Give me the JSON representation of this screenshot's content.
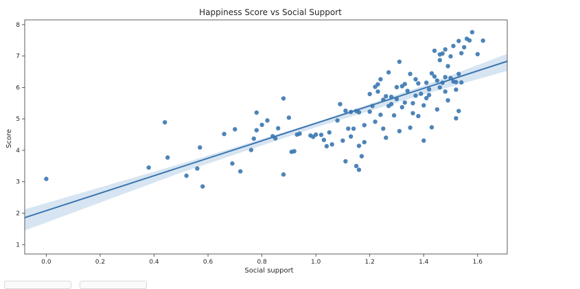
{
  "chart_data": {
    "type": "scatter",
    "title": "Happiness Score vs Social Support",
    "xlabel": "Social support",
    "ylabel": "Score",
    "xlim": [
      -0.08,
      1.71
    ],
    "ylim": [
      0.7,
      8.15
    ],
    "x_ticks": [
      "0.0",
      "0.2",
      "0.4",
      "0.6",
      "0.8",
      "1.0",
      "1.2",
      "1.4",
      "1.6"
    ],
    "x_tick_values": [
      0.0,
      0.2,
      0.4,
      0.6,
      0.8,
      1.0,
      1.2,
      1.4,
      1.6
    ],
    "y_ticks": [
      "1",
      "2",
      "3",
      "4",
      "5",
      "6",
      "7",
      "8"
    ],
    "y_tick_values": [
      1,
      2,
      3,
      4,
      5,
      6,
      7,
      8
    ],
    "grid": false,
    "point_color": "#3a77b0",
    "regression": {
      "x_range": [
        -0.08,
        1.71
      ],
      "intercept": 2.08,
      "slope": 2.78,
      "line_color": "#3b75af",
      "ci_color": "#c9dcee",
      "ci": [
        {
          "x": -0.08,
          "lo": 1.45,
          "hi": 2.12
        },
        {
          "x": 0.5,
          "lo": 3.29,
          "hi": 3.57
        },
        {
          "x": 1.0,
          "lo": 4.73,
          "hi": 4.89
        },
        {
          "x": 1.4,
          "lo": 5.78,
          "hi": 6.06
        },
        {
          "x": 1.71,
          "lo": 6.53,
          "hi": 7.07
        }
      ]
    },
    "points": [
      [
        0.0,
        3.09
      ],
      [
        0.38,
        3.45
      ],
      [
        0.44,
        4.89
      ],
      [
        0.45,
        3.77
      ],
      [
        0.52,
        3.19
      ],
      [
        0.56,
        3.42
      ],
      [
        0.57,
        4.09
      ],
      [
        0.58,
        2.85
      ],
      [
        0.66,
        4.52
      ],
      [
        0.69,
        3.58
      ],
      [
        0.7,
        4.67
      ],
      [
        0.72,
        3.33
      ],
      [
        0.76,
        4.01
      ],
      [
        0.77,
        4.37
      ],
      [
        0.78,
        4.64
      ],
      [
        0.78,
        5.2
      ],
      [
        0.8,
        4.81
      ],
      [
        0.82,
        4.95
      ],
      [
        0.84,
        4.45
      ],
      [
        0.85,
        4.38
      ],
      [
        0.86,
        4.7
      ],
      [
        0.88,
        5.65
      ],
      [
        0.88,
        3.23
      ],
      [
        0.9,
        5.04
      ],
      [
        0.91,
        3.95
      ],
      [
        0.92,
        3.97
      ],
      [
        0.93,
        4.5
      ],
      [
        0.94,
        4.53
      ],
      [
        0.98,
        4.47
      ],
      [
        0.99,
        4.43
      ],
      [
        1.0,
        4.5
      ],
      [
        1.02,
        4.49
      ],
      [
        1.03,
        4.33
      ],
      [
        1.04,
        4.13
      ],
      [
        1.05,
        4.57
      ],
      [
        1.06,
        4.19
      ],
      [
        1.08,
        4.95
      ],
      [
        1.09,
        5.47
      ],
      [
        1.1,
        4.31
      ],
      [
        1.11,
        5.26
      ],
      [
        1.11,
        3.65
      ],
      [
        1.12,
        4.69
      ],
      [
        1.13,
        5.22
      ],
      [
        1.13,
        4.44
      ],
      [
        1.14,
        4.69
      ],
      [
        1.15,
        3.5
      ],
      [
        1.15,
        5.25
      ],
      [
        1.16,
        5.21
      ],
      [
        1.16,
        4.14
      ],
      [
        1.16,
        3.38
      ],
      [
        1.17,
        3.81
      ],
      [
        1.18,
        4.26
      ],
      [
        1.18,
        4.8
      ],
      [
        1.2,
        5.23
      ],
      [
        1.2,
        5.79
      ],
      [
        1.21,
        5.41
      ],
      [
        1.22,
        4.91
      ],
      [
        1.22,
        6.02
      ],
      [
        1.23,
        5.87
      ],
      [
        1.23,
        6.1
      ],
      [
        1.24,
        6.26
      ],
      [
        1.24,
        5.13
      ],
      [
        1.25,
        4.69
      ],
      [
        1.25,
        5.61
      ],
      [
        1.26,
        5.72
      ],
      [
        1.26,
        4.4
      ],
      [
        1.27,
        6.48
      ],
      [
        1.27,
        5.41
      ],
      [
        1.28,
        5.47
      ],
      [
        1.28,
        5.7
      ],
      [
        1.29,
        5.11
      ],
      [
        1.3,
        5.63
      ],
      [
        1.3,
        6.01
      ],
      [
        1.31,
        6.82
      ],
      [
        1.31,
        4.61
      ],
      [
        1.32,
        5.37
      ],
      [
        1.32,
        6.04
      ],
      [
        1.33,
        6.11
      ],
      [
        1.33,
        5.52
      ],
      [
        1.34,
        5.89
      ],
      [
        1.35,
        6.43
      ],
      [
        1.35,
        4.72
      ],
      [
        1.36,
        5.18
      ],
      [
        1.36,
        5.5
      ],
      [
        1.37,
        6.26
      ],
      [
        1.37,
        5.74
      ],
      [
        1.38,
        6.13
      ],
      [
        1.38,
        5.09
      ],
      [
        1.39,
        5.8
      ],
      [
        1.4,
        4.31
      ],
      [
        1.4,
        5.43
      ],
      [
        1.41,
        5.66
      ],
      [
        1.41,
        6.15
      ],
      [
        1.42,
        5.94
      ],
      [
        1.42,
        5.76
      ],
      [
        1.43,
        6.45
      ],
      [
        1.43,
        4.73
      ],
      [
        1.44,
        7.17
      ],
      [
        1.44,
        6.35
      ],
      [
        1.45,
        6.22
      ],
      [
        1.45,
        5.3
      ],
      [
        1.46,
        6.87
      ],
      [
        1.46,
        6.0
      ],
      [
        1.46,
        7.05
      ],
      [
        1.47,
        7.08
      ],
      [
        1.47,
        6.15
      ],
      [
        1.48,
        6.33
      ],
      [
        1.48,
        7.21
      ],
      [
        1.48,
        5.87
      ],
      [
        1.49,
        6.68
      ],
      [
        1.49,
        5.59
      ],
      [
        1.5,
        6.99
      ],
      [
        1.5,
        6.3
      ],
      [
        1.51,
        7.32
      ],
      [
        1.51,
        6.19
      ],
      [
        1.52,
        5.93
      ],
      [
        1.52,
        6.17
      ],
      [
        1.52,
        5.02
      ],
      [
        1.53,
        6.43
      ],
      [
        1.53,
        7.48
      ],
      [
        1.53,
        5.25
      ],
      [
        1.54,
        7.09
      ],
      [
        1.54,
        6.16
      ],
      [
        1.55,
        7.28
      ],
      [
        1.56,
        7.55
      ],
      [
        1.57,
        7.5
      ],
      [
        1.58,
        7.76
      ],
      [
        1.6,
        7.06
      ],
      [
        1.62,
        7.49
      ]
    ]
  }
}
